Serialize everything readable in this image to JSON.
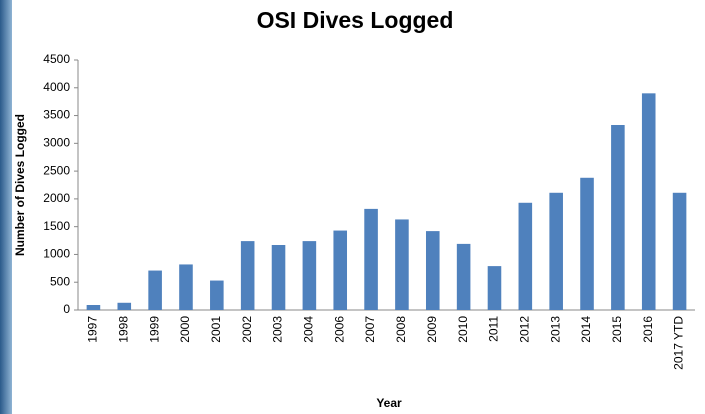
{
  "chart_data": {
    "type": "bar",
    "title": "OSI Dives Logged",
    "x_label": "Year",
    "y_label": "Number of Dives Logged",
    "categories": [
      "1997",
      "1998",
      "1999",
      "2000",
      "2001",
      "2002",
      "2003",
      "2004",
      "2006",
      "2007",
      "2008",
      "2009",
      "2010",
      "2011",
      "2012",
      "2013",
      "2014",
      "2015",
      "2016",
      "2017 YTD"
    ],
    "values": [
      90,
      130,
      710,
      820,
      530,
      1240,
      1170,
      1240,
      1430,
      1820,
      1630,
      1420,
      1190,
      790,
      1930,
      2110,
      2380,
      3330,
      3900,
      2110
    ],
    "color": "#4f81bd",
    "ylim": [
      0,
      4500
    ],
    "yticks": [
      0,
      500,
      1000,
      1500,
      2000,
      2500,
      3000,
      3500,
      4000,
      4500
    ],
    "grid": false
  }
}
